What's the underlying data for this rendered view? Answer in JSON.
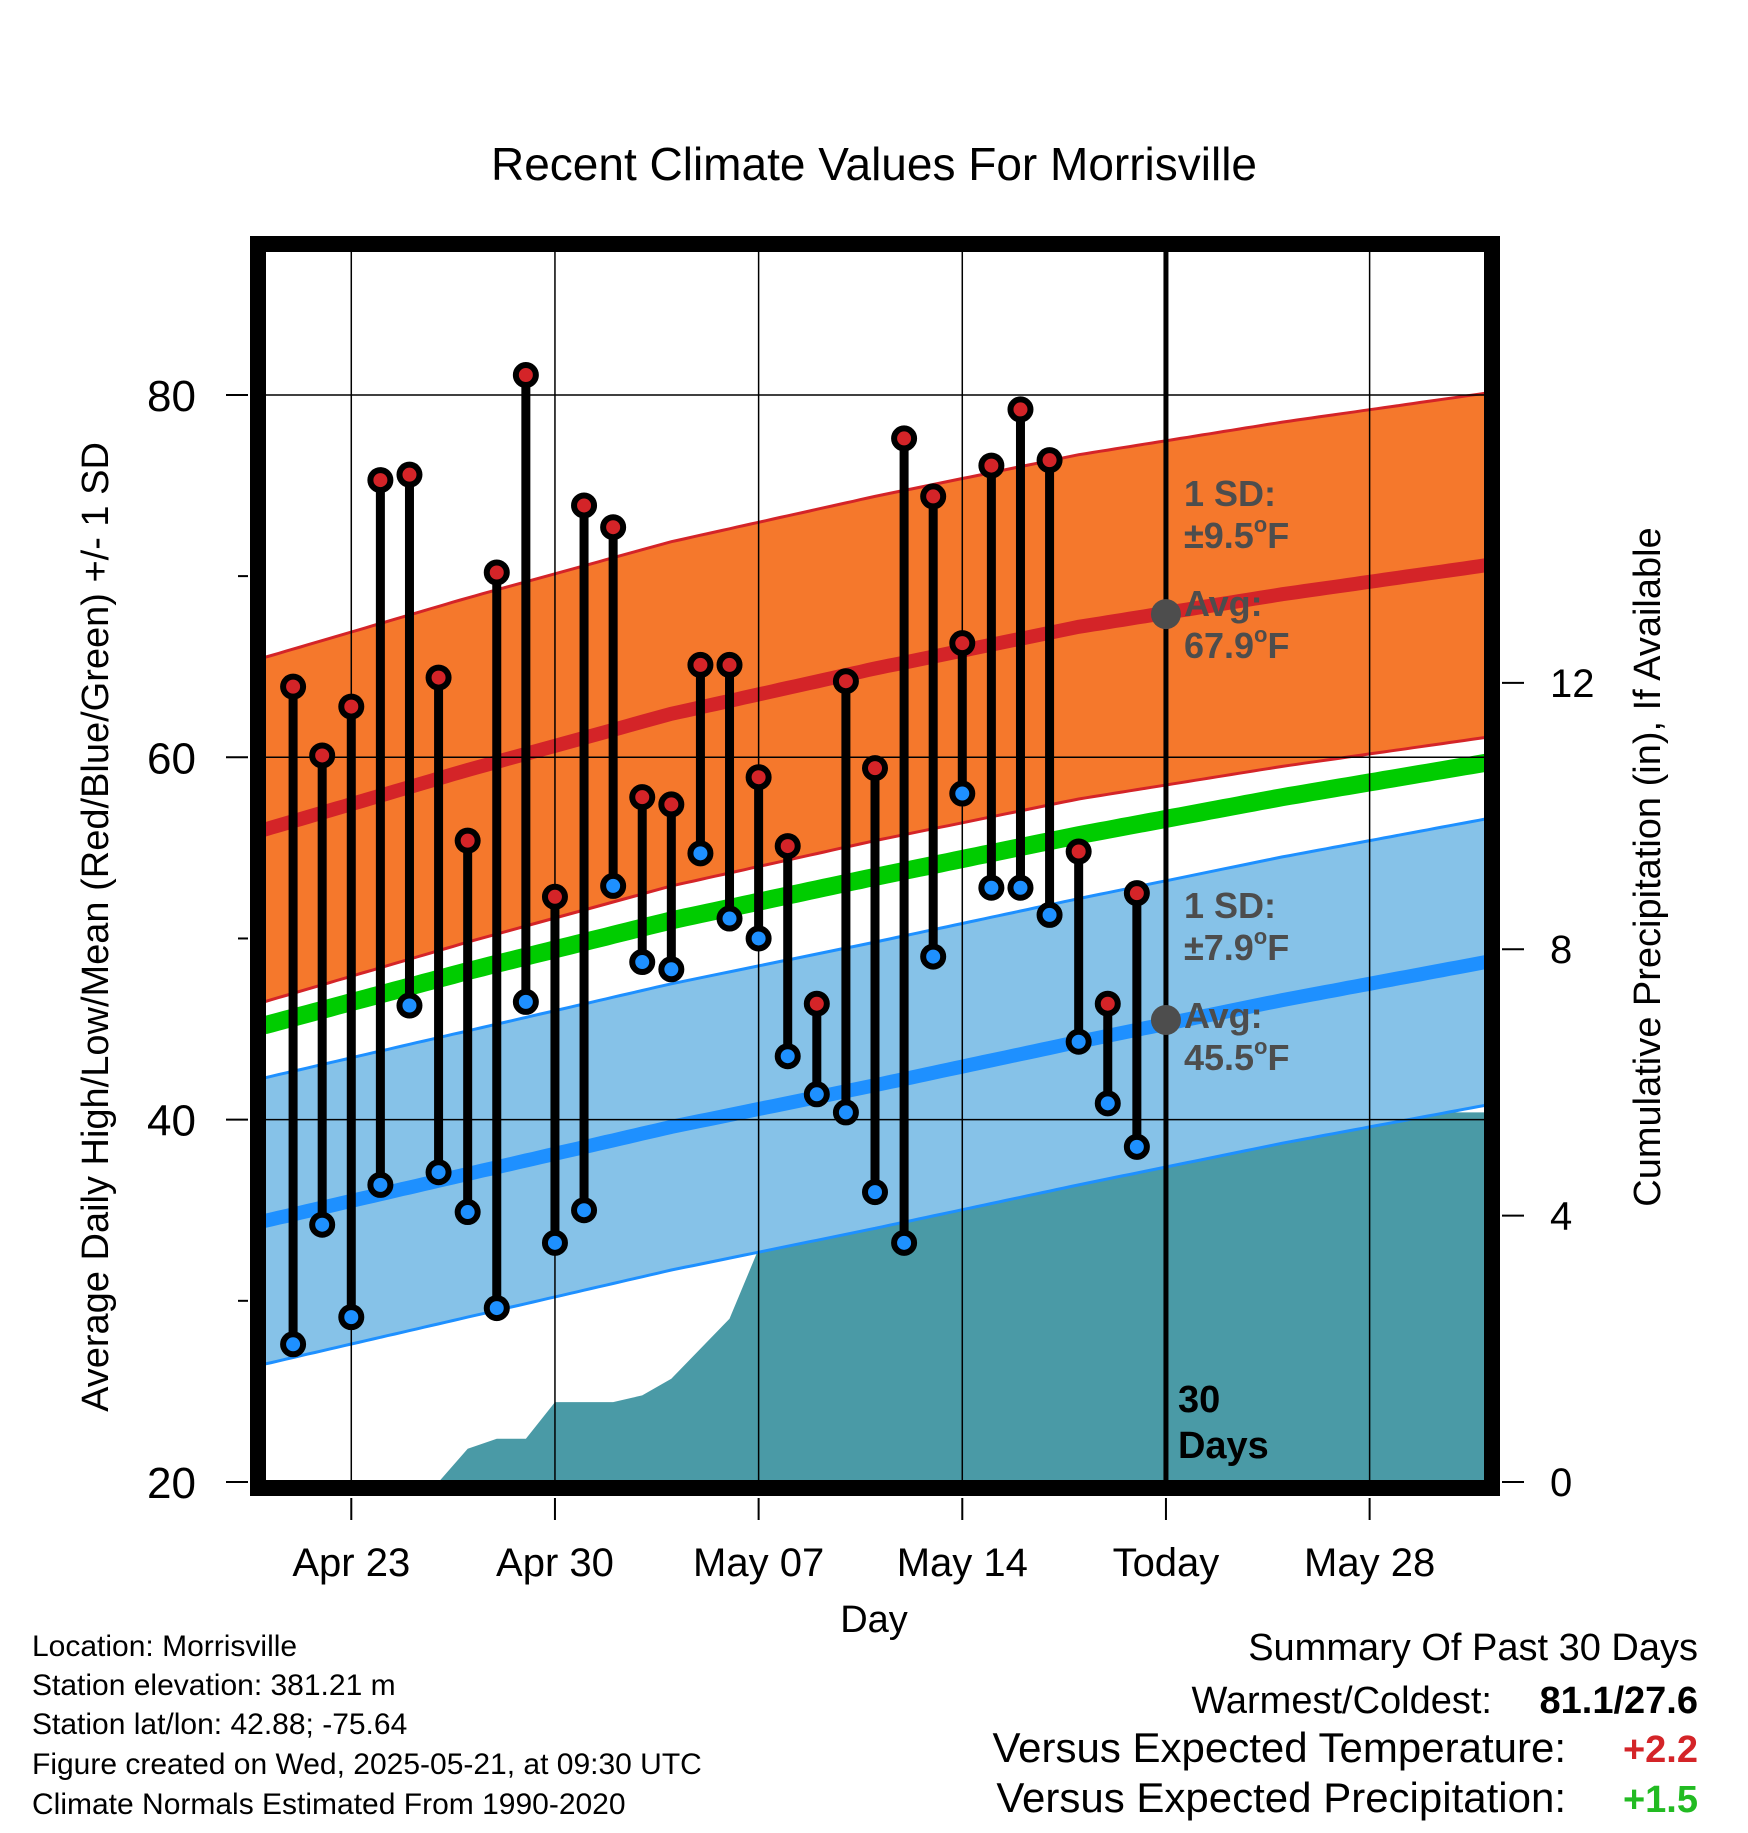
{
  "chart_data": {
    "type": "line",
    "title": "Recent Climate Values For Morrisville",
    "xlabel": "Day",
    "ylabel": "Average Daily High/Low/Mean (Red/Blue/Green) +/- 1 SD",
    "y2label": "Cumulative Precipitation (in), If Available",
    "ylim": [
      20,
      88
    ],
    "y2lim": [
      0,
      18.5
    ],
    "yticks": [
      20,
      40,
      60,
      80
    ],
    "y2ticks": [
      0,
      4,
      8,
      12
    ],
    "grid": true,
    "xlim": [
      "2025-04-20",
      "2025-06-01"
    ],
    "x_tick_dates": [
      "2025-04-23",
      "2025-04-30",
      "2025-05-07",
      "2025-05-14",
      "2025-05-21",
      "2025-05-28"
    ],
    "x_tick_labels": [
      "Apr 23",
      "Apr 30",
      "May 07",
      "May 14",
      "Today",
      "May 28"
    ],
    "today_date": "2025-05-21",
    "today_label": [
      "30",
      "Days"
    ],
    "daily": {
      "dates": [
        "2025-04-21",
        "2025-04-22",
        "2025-04-23",
        "2025-04-24",
        "2025-04-25",
        "2025-04-26",
        "2025-04-27",
        "2025-04-28",
        "2025-04-29",
        "2025-04-30",
        "2025-05-01",
        "2025-05-02",
        "2025-05-03",
        "2025-05-04",
        "2025-05-05",
        "2025-05-06",
        "2025-05-07",
        "2025-05-08",
        "2025-05-09",
        "2025-05-10",
        "2025-05-11",
        "2025-05-12",
        "2025-05-13",
        "2025-05-14",
        "2025-05-15",
        "2025-05-16",
        "2025-05-17",
        "2025-05-18",
        "2025-05-19",
        "2025-05-20"
      ],
      "highs": [
        63.9,
        60.1,
        62.8,
        75.3,
        75.6,
        64.4,
        55.4,
        70.2,
        81.1,
        52.3,
        73.9,
        72.7,
        57.8,
        57.4,
        65.1,
        65.1,
        58.9,
        55.1,
        46.4,
        64.2,
        59.4,
        77.6,
        74.4,
        66.3,
        76.1,
        79.2,
        76.4,
        54.8,
        46.4,
        52.5
      ],
      "lows": [
        27.6,
        34.2,
        29.1,
        36.4,
        46.3,
        37.1,
        34.9,
        29.6,
        46.5,
        33.2,
        35.0,
        52.9,
        48.7,
        48.3,
        54.7,
        51.1,
        50.0,
        43.5,
        41.4,
        40.4,
        36.0,
        33.2,
        49.0,
        58.0,
        52.8,
        52.8,
        51.3,
        44.3,
        40.9,
        38.5
      ]
    },
    "normals": {
      "dates": [
        "2025-04-20",
        "2025-04-27",
        "2025-05-04",
        "2025-05-11",
        "2025-05-18",
        "2025-05-25",
        "2025-06-01"
      ],
      "avg_high": [
        56.0,
        59.3,
        62.4,
        64.9,
        67.2,
        69.0,
        70.6
      ],
      "avg_high_sd": 9.5,
      "avg_low": [
        34.4,
        37.0,
        39.6,
        41.9,
        44.3,
        46.6,
        48.7
      ],
      "avg_low_sd": 7.9,
      "avg_mean": [
        45.2,
        48.2,
        51.0,
        53.4,
        55.7,
        57.8,
        59.7
      ]
    },
    "precipitation": {
      "dates": [
        "2025-04-20",
        "2025-04-26",
        "2025-04-27",
        "2025-04-28",
        "2025-04-29",
        "2025-04-30",
        "2025-05-01",
        "2025-05-02",
        "2025-05-03",
        "2025-05-04",
        "2025-05-05",
        "2025-05-06",
        "2025-05-07",
        "2025-05-08",
        "2025-05-09",
        "2025-05-10",
        "2025-05-11",
        "2025-05-12",
        "2025-05-13",
        "2025-05-14",
        "2025-05-15",
        "2025-05-16",
        "2025-05-17",
        "2025-05-18",
        "2025-05-19",
        "2025-05-20",
        "2025-06-01"
      ],
      "cumulative": [
        0,
        0,
        0.5,
        0.65,
        0.65,
        1.2,
        1.2,
        1.2,
        1.3,
        1.55,
        2.0,
        2.45,
        3.5,
        3.8,
        3.8,
        4.75,
        4.8,
        4.8,
        4.8,
        4.8,
        4.8,
        4.8,
        4.9,
        5.1,
        5.5,
        5.55,
        5.55
      ]
    },
    "annotations": {
      "high_sd": "1 SD:",
      "high_sd_val": "±9.5",
      "high_avg": "Avg:",
      "high_avg_val": "67.9",
      "low_sd": "1 SD:",
      "low_sd_val": "±7.9",
      "low_avg": "Avg:",
      "low_avg_val": "45.5",
      "unit_sup": "o",
      "unit": "F",
      "high_avg_point": 67.9,
      "low_avg_point": 45.5
    },
    "colors": {
      "high_band": "#F5782C",
      "high_line": "#D42428",
      "low_band": "#86C2E8",
      "low_line": "#1E90FF",
      "mean_line": "#00CC00",
      "precip": "#4A9AA6",
      "high_marker": "#D42428",
      "low_marker": "#1E90FF",
      "avg_marker": "#4D4D4D",
      "annotation": "#4D4D4D"
    }
  },
  "footer": {
    "location": "Location: Morrisville",
    "elevation": "Station elevation: 381.21 m",
    "latlon": "Station lat/lon: 42.88; -75.64",
    "created": "Figure created on Wed, 2025-05-21, at 09:30 UTC",
    "normals": "Climate Normals Estimated From 1990-2020"
  },
  "summary": {
    "title": "Summary Of Past 30 Days",
    "warmest_label": "Warmest/Coldest:",
    "warmest_value": "81.1/27.6",
    "temp_label": "Versus Expected Temperature:",
    "temp_value": "+2.2",
    "precip_label": "Versus Expected Precipitation:",
    "precip_value": "+1.5",
    "temp_color": "#D42428",
    "precip_color": "#22BB22"
  }
}
